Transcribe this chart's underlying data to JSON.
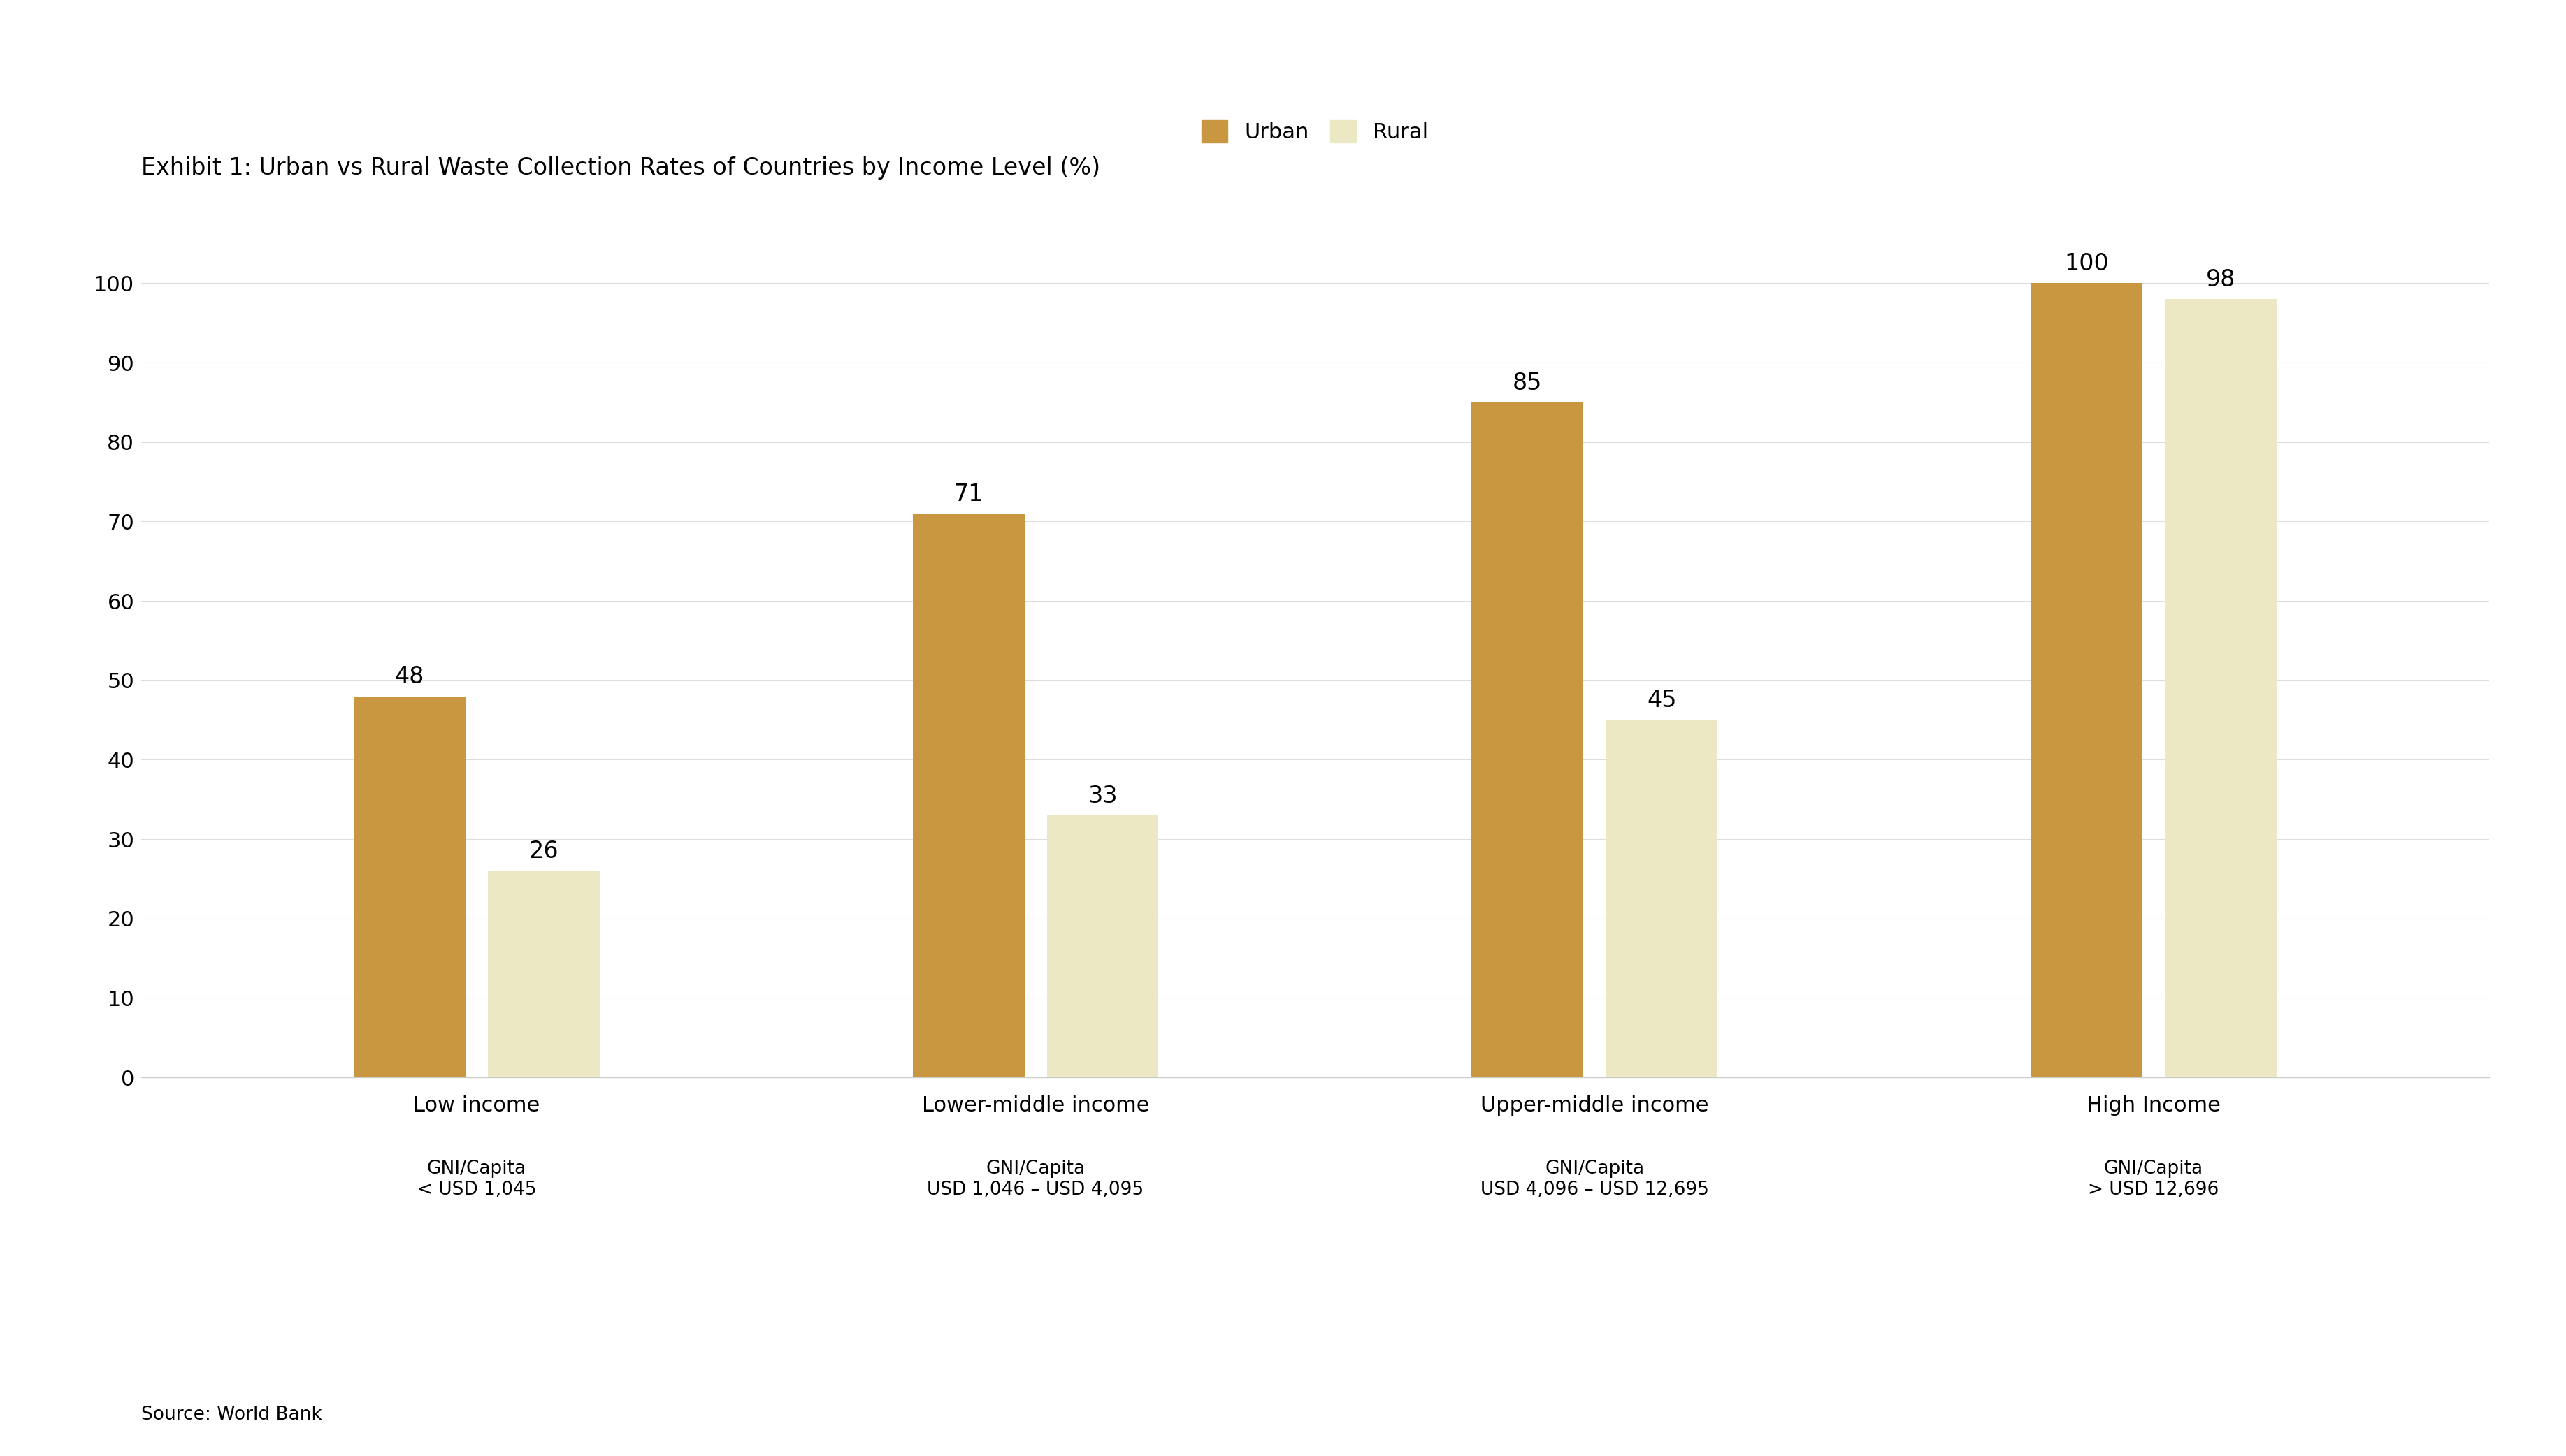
{
  "title": "Exhibit 1: Urban vs Rural Waste Collection Rates of Countries by Income Level (%)",
  "categories": [
    "Low income",
    "Lower-middle income",
    "Upper-middle income",
    "High Income"
  ],
  "gni_labels": [
    "GNI/Capita\n< USD 1,045",
    "GNI/Capita\nUSD 1,046 – USD 4,095",
    "GNI/Capita\nUSD 4,096 – USD 12,695",
    "GNI/Capita\n> USD 12,696"
  ],
  "urban_values": [
    48,
    71,
    85,
    100
  ],
  "rural_values": [
    26,
    33,
    45,
    98
  ],
  "urban_color": "#C8973F",
  "rural_color": "#EDE8C4",
  "background_color": "#FFFFFF",
  "ylim": [
    0,
    110
  ],
  "yticks": [
    0,
    10,
    20,
    30,
    40,
    50,
    60,
    70,
    80,
    90,
    100
  ],
  "source_text": "Source: World Bank",
  "legend_urban": "Urban",
  "legend_rural": "Rural",
  "title_fontsize": 24,
  "axis_fontsize": 22,
  "bar_value_fontsize": 24,
  "source_fontsize": 19,
  "gni_fontsize": 19,
  "legend_fontsize": 22
}
